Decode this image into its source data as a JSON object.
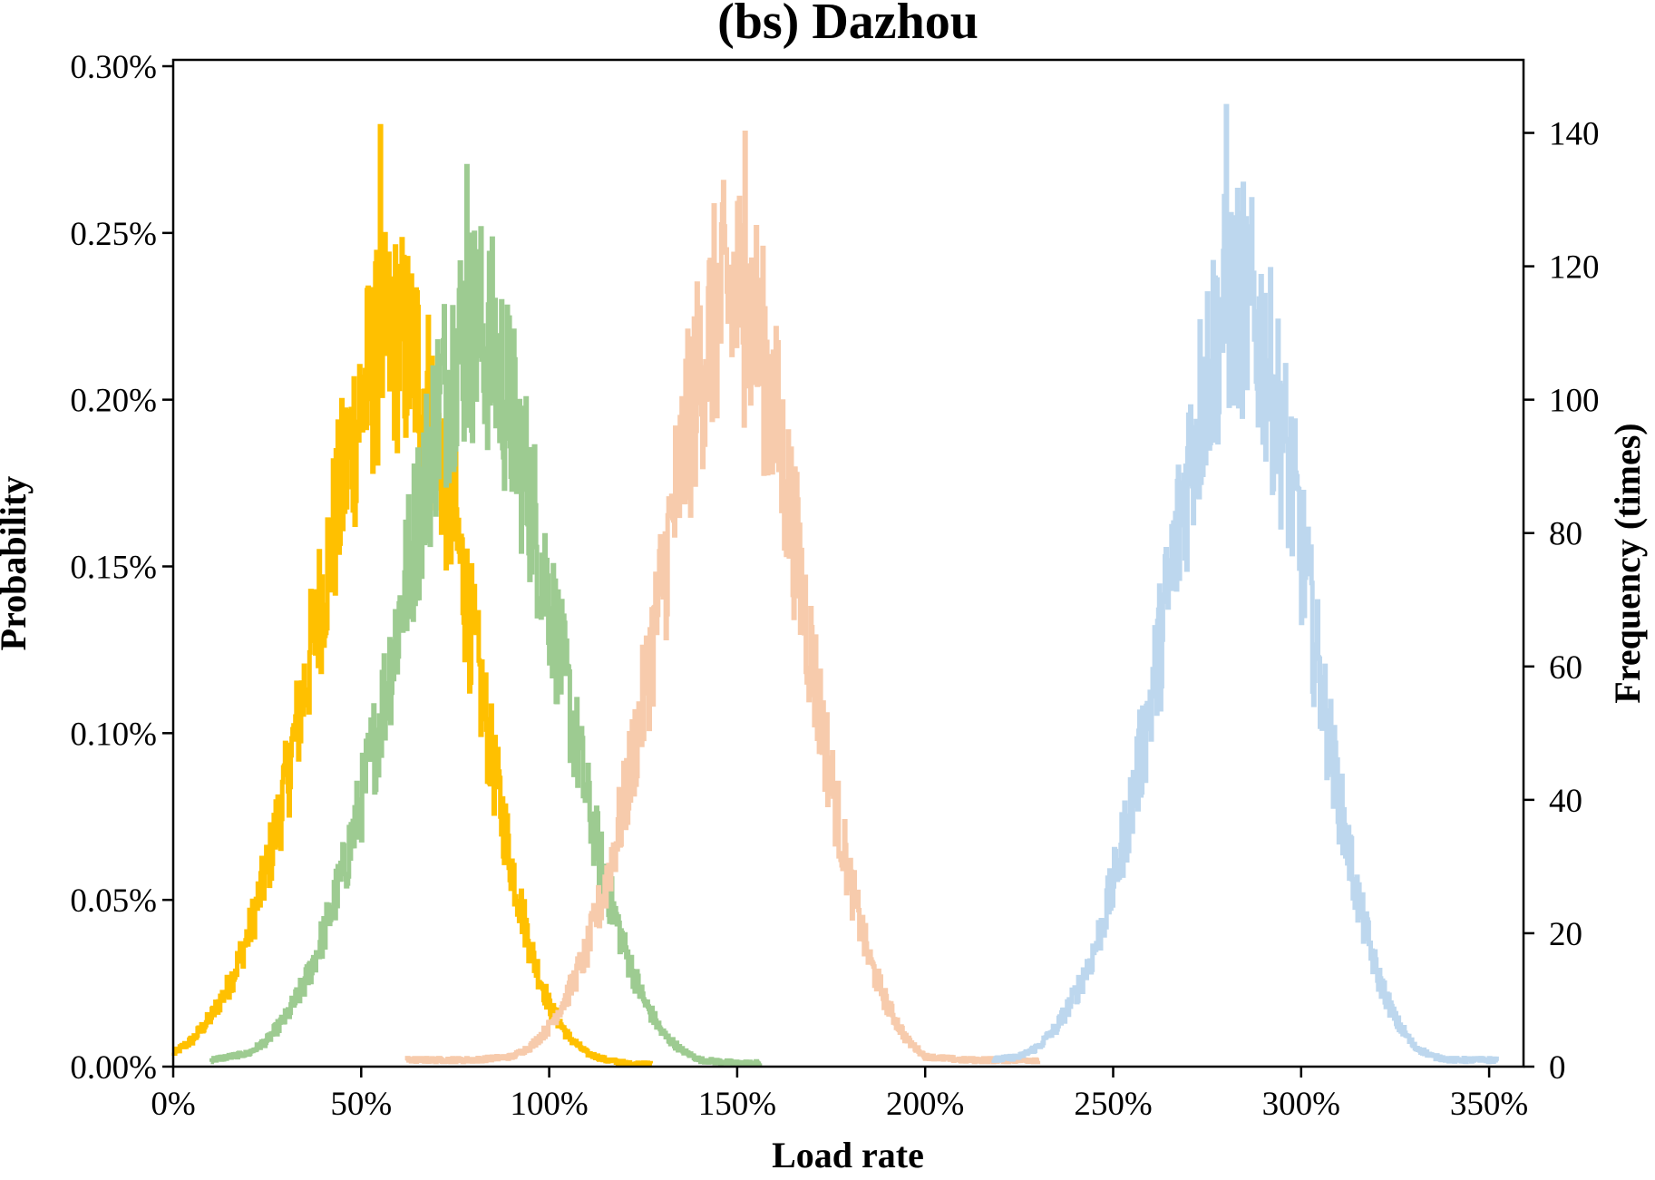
{
  "chart_data": {
    "type": "line",
    "title": "(bs) Dazhou",
    "xlabel": "Load rate",
    "ylabel": "Probability",
    "ylabel_right": "Frequency (times)",
    "xlim": [
      0,
      360
    ],
    "ylim": [
      0,
      0.3
    ],
    "ylim_right": [
      0,
      150
    ],
    "x_ticks": [
      0,
      50,
      100,
      150,
      200,
      250,
      300,
      350
    ],
    "x_tick_labels": [
      "0%",
      "50%",
      "100%",
      "150%",
      "200%",
      "250%",
      "300%",
      "350%"
    ],
    "y_ticks": [
      0,
      0.05,
      0.1,
      0.15,
      0.2,
      0.25,
      0.3
    ],
    "y_tick_labels": [
      "0.00%",
      "0.05%",
      "0.10%",
      "0.15%",
      "0.20%",
      "0.25%",
      "0.30%"
    ],
    "y_right_ticks": [
      0,
      20,
      40,
      60,
      80,
      100,
      120,
      140
    ],
    "y_right_tick_labels": [
      "0",
      "20",
      "40",
      "60",
      "80",
      "100",
      "120",
      "140"
    ],
    "grid": false,
    "legend": "none",
    "colors": [
      "#FFC000",
      "#9DCB91",
      "#F7CBAC",
      "#BDD7EE"
    ],
    "series": [
      {
        "color": "#FFC000",
        "x": [
          0,
          5,
          10,
          15,
          20,
          25,
          30,
          35,
          40,
          45,
          50,
          55,
          60,
          65,
          70,
          75,
          80,
          85,
          90,
          95,
          100,
          105,
          110,
          115,
          120,
          127
        ],
        "values": [
          0.004,
          0.008,
          0.015,
          0.025,
          0.04,
          0.06,
          0.085,
          0.115,
          0.145,
          0.175,
          0.2,
          0.215,
          0.218,
          0.21,
          0.19,
          0.16,
          0.125,
          0.09,
          0.06,
          0.035,
          0.018,
          0.009,
          0.004,
          0.002,
          0.001,
          0.0
        ],
        "peak": [
          55,
          0.282
        ]
      },
      {
        "color": "#9DCB91",
        "x": [
          10,
          20,
          25,
          30,
          35,
          40,
          45,
          50,
          55,
          60,
          65,
          70,
          75,
          80,
          85,
          90,
          95,
          100,
          105,
          110,
          115,
          120,
          125,
          130,
          135,
          140,
          150,
          156
        ],
        "values": [
          0.002,
          0.004,
          0.008,
          0.015,
          0.025,
          0.04,
          0.058,
          0.08,
          0.105,
          0.135,
          0.165,
          0.195,
          0.215,
          0.222,
          0.215,
          0.195,
          0.17,
          0.14,
          0.11,
          0.08,
          0.055,
          0.035,
          0.02,
          0.01,
          0.005,
          0.002,
          0.001,
          0.001
        ],
        "peak": [
          78,
          0.27
        ]
      },
      {
        "color": "#F7CBAC",
        "x": [
          62,
          80,
          90,
          95,
          100,
          105,
          110,
          115,
          120,
          125,
          130,
          135,
          140,
          145,
          150,
          155,
          160,
          165,
          170,
          175,
          180,
          185,
          190,
          195,
          200,
          210,
          220,
          230
        ],
        "values": [
          0.002,
          0.002,
          0.003,
          0.006,
          0.012,
          0.022,
          0.035,
          0.055,
          0.08,
          0.11,
          0.145,
          0.18,
          0.21,
          0.228,
          0.232,
          0.222,
          0.195,
          0.16,
          0.12,
          0.085,
          0.055,
          0.032,
          0.018,
          0.008,
          0.003,
          0.002,
          0.002,
          0.002
        ],
        "peak": [
          152,
          0.28
        ]
      },
      {
        "color": "#BDD7EE",
        "x": [
          218,
          225,
          230,
          235,
          240,
          245,
          250,
          255,
          260,
          265,
          270,
          275,
          280,
          285,
          290,
          295,
          300,
          305,
          310,
          315,
          320,
          325,
          330,
          335,
          340,
          345,
          352
        ],
        "values": [
          0.002,
          0.003,
          0.006,
          0.012,
          0.022,
          0.035,
          0.055,
          0.08,
          0.11,
          0.145,
          0.18,
          0.21,
          0.228,
          0.23,
          0.215,
          0.19,
          0.155,
          0.115,
          0.08,
          0.05,
          0.028,
          0.014,
          0.006,
          0.003,
          0.002,
          0.002,
          0.002
        ],
        "peak": [
          280,
          0.288
        ]
      }
    ]
  }
}
